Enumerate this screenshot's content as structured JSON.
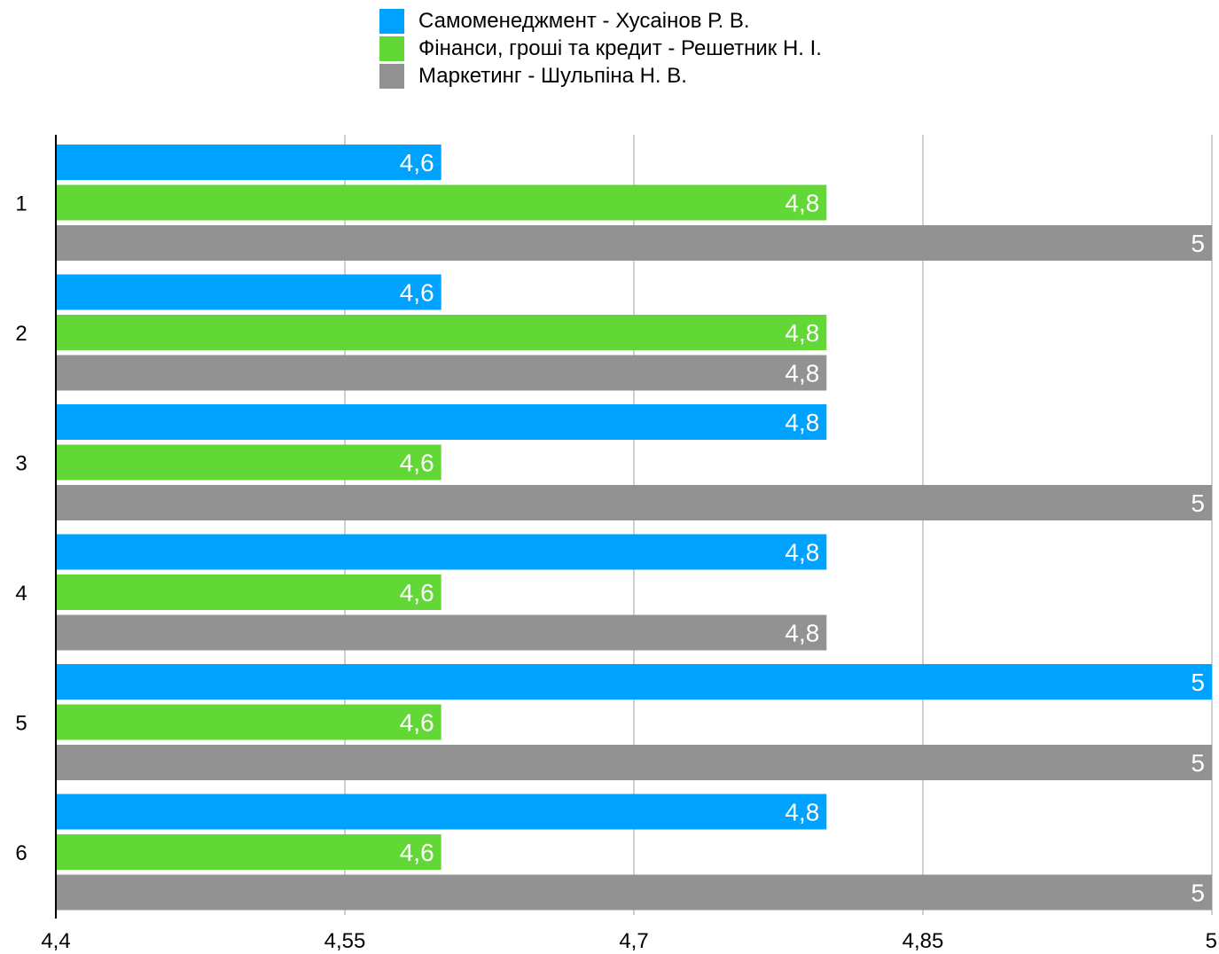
{
  "chart_data": {
    "type": "bar",
    "orientation": "horizontal",
    "categories": [
      "1",
      "2",
      "3",
      "4",
      "5",
      "6"
    ],
    "series": [
      {
        "name": "Самоменеджмент - Хусаінов Р. В.",
        "color": "#00a2ff",
        "values": [
          4.6,
          4.6,
          4.8,
          4.8,
          5,
          4.8
        ],
        "labels": [
          "4,6",
          "4,6",
          "4,8",
          "4,8",
          "5",
          "4,8"
        ]
      },
      {
        "name": "Фінанси, гроші та кредит - Решетник Н. І.",
        "color": "#61d836",
        "values": [
          4.8,
          4.8,
          4.6,
          4.6,
          4.6,
          4.6
        ],
        "labels": [
          "4,8",
          "4,8",
          "4,6",
          "4,6",
          "4,6",
          "4,6"
        ]
      },
      {
        "name": "Маркетинг - Шульпіна Н. В.",
        "color": "#929292",
        "values": [
          5,
          4.8,
          5,
          4.8,
          5,
          5
        ],
        "labels": [
          "5",
          "4,8",
          "5",
          "4,8",
          "5",
          "5"
        ]
      }
    ],
    "xlim": [
      4.4,
      5
    ],
    "x_ticks": [
      4.4,
      4.55,
      4.7,
      4.85,
      5
    ],
    "x_tick_labels": [
      "4,4",
      "4,55",
      "4,7",
      "4,85",
      "5"
    ],
    "grid": true,
    "legend_position": "top-center"
  }
}
